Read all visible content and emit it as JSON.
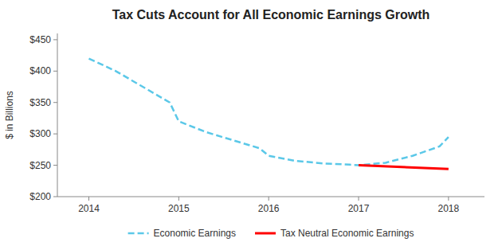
{
  "chart_data": {
    "type": "line",
    "title": "Tax Cuts Account for All Economic Earnings Growth",
    "y_label": "$ in Billions",
    "series": [
      {
        "name": "Economic Earnings",
        "color": "#5BC8E8",
        "line_style": "dashed",
        "x": [
          2014,
          2014.3,
          2014.6,
          2014.9,
          2015,
          2015.3,
          2015.6,
          2015.9,
          2016,
          2016.3,
          2016.6,
          2016.9,
          2017,
          2017.3,
          2017.6,
          2017.9,
          2018
        ],
        "values": [
          420,
          400,
          375,
          350,
          320,
          303,
          290,
          277,
          265,
          257,
          253,
          251,
          250,
          254,
          265,
          280,
          295
        ]
      },
      {
        "name": "Tax Neutral Economic Earnings",
        "color": "#FF0000",
        "line_style": "solid",
        "x": [
          2017,
          2018
        ],
        "values": [
          250,
          244
        ]
      }
    ],
    "xlim": [
      2013.65,
      2018.4
    ],
    "xticks": [
      2014,
      2015,
      2016,
      2017,
      2018
    ],
    "ylim": [
      200,
      460
    ],
    "yticks": [
      {
        "value": 200,
        "label": "$200"
      },
      {
        "value": 250,
        "label": "$250"
      },
      {
        "value": 300,
        "label": "$300"
      },
      {
        "value": 350,
        "label": "$350"
      },
      {
        "value": 400,
        "label": "$400"
      },
      {
        "value": 450,
        "label": "$450"
      }
    ],
    "grid": false,
    "legend": "bottom"
  }
}
